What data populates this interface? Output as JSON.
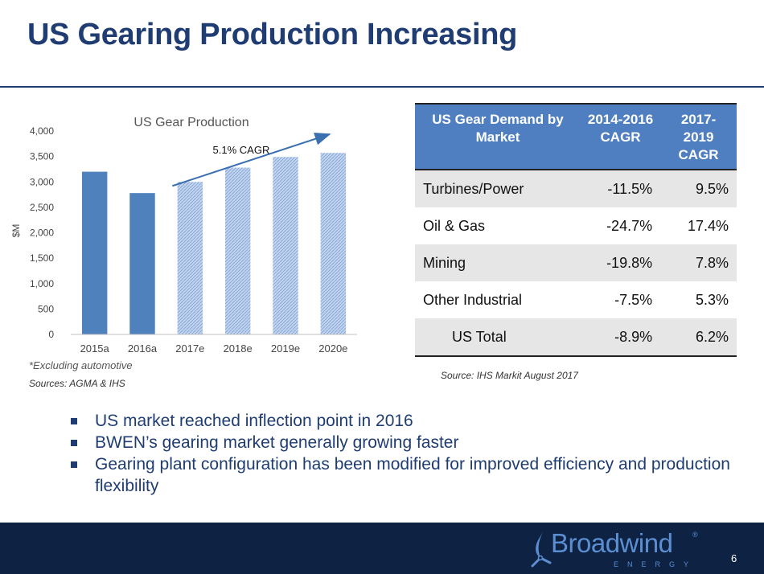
{
  "slide": {
    "title": "US Gearing Production Increasing",
    "page_number": "6"
  },
  "chart_data": {
    "type": "bar",
    "title": "US Gear Production",
    "ylabel": "$M",
    "xlabel": "",
    "categories": [
      "2015a",
      "2016a",
      "2017e",
      "2018e",
      "2019e",
      "2020e"
    ],
    "values": [
      3200,
      2780,
      3000,
      3280,
      3490,
      3570
    ],
    "estimated": [
      false,
      false,
      true,
      true,
      true,
      true
    ],
    "ylim": [
      0,
      4000
    ],
    "yticks": [
      "0",
      "500",
      "1,000",
      "1,500",
      "2,000",
      "2,500",
      "3,000",
      "3,500",
      "4,000"
    ],
    "ytick_values": [
      0,
      500,
      1000,
      1500,
      2000,
      2500,
      3000,
      3500,
      4000
    ],
    "annotation": "5.1% CAGR",
    "grid": false,
    "colors": {
      "actual": "#4f81bd",
      "estimate": "#a9c1e6",
      "arrow": "#3a6fb0"
    }
  },
  "chart_notes": {
    "footnote": "*Excluding automotive",
    "sources": "Sources: AGMA & IHS"
  },
  "table": {
    "headers": [
      "US Gear Demand by Market",
      "2014-2016 CAGR",
      "2017-2019 CAGR"
    ],
    "rows": [
      {
        "market": "Turbines/Power",
        "cagr_2014_2016": "-11.5%",
        "cagr_2017_2019": "9.5%"
      },
      {
        "market": "Oil & Gas",
        "cagr_2014_2016": "-24.7%",
        "cagr_2017_2019": "17.4%"
      },
      {
        "market": "Mining",
        "cagr_2014_2016": "-19.8%",
        "cagr_2017_2019": "7.8%"
      },
      {
        "market": "Other Industrial",
        "cagr_2014_2016": "-7.5%",
        "cagr_2017_2019": "5.3%"
      },
      {
        "market": "US Total",
        "cagr_2014_2016": "-8.9%",
        "cagr_2017_2019": "6.2%"
      }
    ],
    "source": "Source: IHS Markit August 2017",
    "header_color": "#4f7fc1"
  },
  "bullets": [
    "US market reached inflection point in 2016",
    "BWEN’s gearing market generally growing faster",
    "Gearing plant configuration has been modified for improved efficiency and production flexibility"
  ],
  "logo": {
    "name": "Broadwind",
    "subtitle": "ENERGY",
    "registered": "®"
  },
  "colors": {
    "title": "#1f3d73",
    "footer": "#0e2244",
    "logo": "#5b8fd1"
  }
}
